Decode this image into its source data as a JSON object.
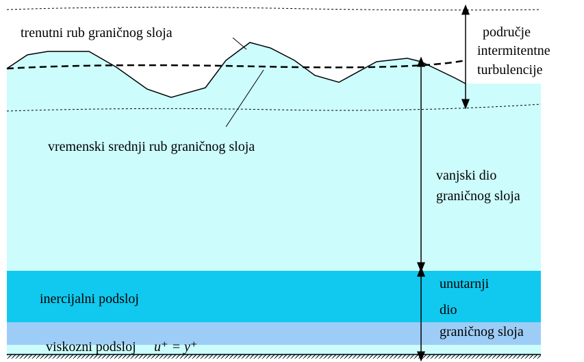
{
  "labels": {
    "instantaneous_edge": "trenutni rub graničnog sloja",
    "mean_edge": "vremenski srednji rub graničnog sloja",
    "intermittent": [
      "područje",
      "intermitentne",
      "turbulencije"
    ],
    "outer": [
      "vanjski dio",
      "graničnog sloja"
    ],
    "inertial": "inercijalni podsloj",
    "inner": [
      "unutarnji",
      "dio",
      "graničnog sloja"
    ],
    "viscous": "viskozni podsloj",
    "viscous_law": "u⁺ = y⁺"
  }
}
